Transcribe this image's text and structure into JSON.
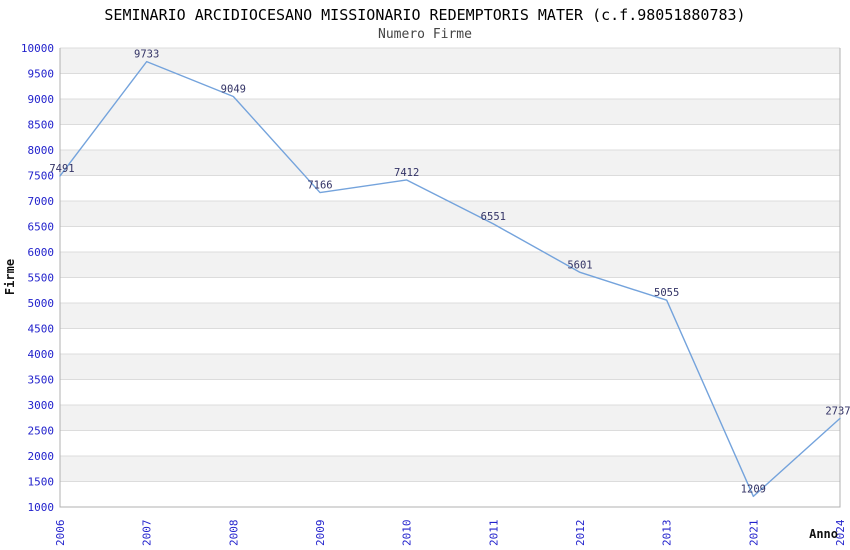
{
  "chart_data": {
    "type": "line",
    "title": "SEMINARIO ARCIDIOCESANO MISSIONARIO REDEMPTORIS MATER (c.f.98051880783)",
    "subtitle": "Numero Firme",
    "xlabel": "Anno",
    "ylabel": "Firme",
    "categories": [
      "2006",
      "2007",
      "2008",
      "2009",
      "2010",
      "2011",
      "2012",
      "2013",
      "2021",
      "2024"
    ],
    "series": [
      {
        "name": "Numero Firme",
        "values": [
          7491,
          9733,
          9049,
          7166,
          7412,
          6551,
          5601,
          5055,
          1209,
          2737
        ]
      }
    ],
    "ylim": [
      1000,
      10000
    ],
    "ytick_step": 500,
    "grid": true,
    "legend": "none",
    "band_fill_alternating": true,
    "point_labels_visible": true,
    "colors": {
      "line": "#74a3dc",
      "tick_label": "#2222cc",
      "data_label": "#333366",
      "band": "#f2f2f2",
      "gridline": "#dcdcdc",
      "axis_border": "#b0b0b0",
      "title": "#000000",
      "subtitle": "#444444",
      "axis_title": "#111111",
      "background": "#ffffff"
    }
  }
}
